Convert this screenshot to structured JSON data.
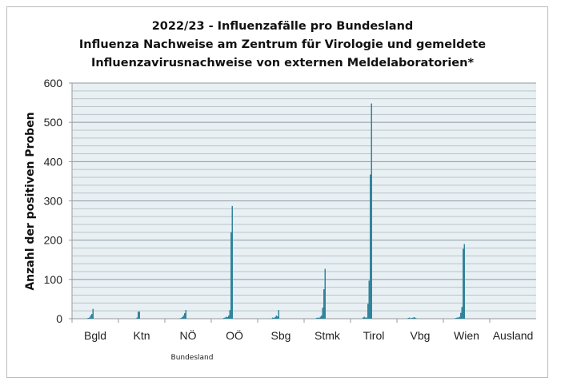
{
  "chart_data": {
    "type": "bar",
    "title": [
      "2022/23 - Influenzafälle pro Bundesland",
      "Influenza Nachweise am Zentrum für Virologie und gemeldete",
      "Influenzavirusnachweise von externen Meldelaboratorien*"
    ],
    "xlabel": "Bundesland",
    "ylabel": "Anzahl der positiven Proben",
    "ylim": [
      0,
      600
    ],
    "yticks": [
      0,
      100,
      200,
      300,
      400,
      500,
      600
    ],
    "grid": true,
    "bar_color": "#31849b",
    "categories": [
      "Bgld",
      "Ktn",
      "NÖ",
      "OÖ",
      "Sbg",
      "Stmk",
      "Tirol",
      "Vbg",
      "Wien",
      "Ausland"
    ],
    "series_values": [
      [
        0,
        0,
        0,
        0,
        0,
        0,
        0,
        0,
        1,
        2,
        3,
        8,
        12,
        25
      ],
      [
        0,
        0,
        0,
        0,
        0,
        0,
        0,
        0,
        0,
        0,
        0,
        3,
        18,
        18
      ],
      [
        0,
        0,
        0,
        0,
        0,
        0,
        0,
        0,
        1,
        2,
        4,
        8,
        14,
        22
      ],
      [
        0,
        0,
        0,
        0,
        0,
        0,
        2,
        3,
        5,
        4,
        8,
        22,
        220,
        287
      ],
      [
        0,
        0,
        0,
        0,
        0,
        0,
        0,
        1,
        3,
        2,
        4,
        8,
        6,
        22
      ],
      [
        0,
        0,
        0,
        0,
        0,
        1,
        2,
        3,
        2,
        5,
        8,
        28,
        75,
        127
      ],
      [
        0,
        0,
        0,
        0,
        0,
        0,
        3,
        5,
        3,
        3,
        38,
        97,
        367,
        548
      ],
      [
        0,
        0,
        0,
        0,
        0,
        2,
        3,
        1,
        2,
        3,
        4,
        2,
        1,
        0
      ],
      [
        0,
        0,
        0,
        0,
        0,
        1,
        2,
        3,
        3,
        5,
        15,
        30,
        178,
        190
      ],
      [
        0,
        0,
        0,
        0,
        0,
        0,
        0,
        0,
        0,
        0,
        0,
        0,
        0,
        0
      ]
    ]
  }
}
